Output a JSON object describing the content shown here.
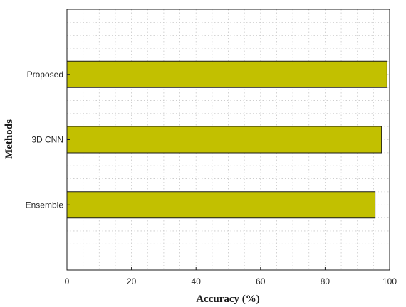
{
  "chart_data": {
    "type": "bar",
    "orientation": "horizontal",
    "categories": [
      "Ensemble",
      "3D CNN",
      "Proposed"
    ],
    "values": [
      95.5,
      97.5,
      99.2
    ],
    "title": "",
    "xlabel": "Accuracy (%)",
    "ylabel": "Methods",
    "xlim": [
      0,
      100
    ],
    "xticks": [
      "0",
      "20",
      "40",
      "60",
      "80",
      "100"
    ],
    "grid": true,
    "minor_grid": true,
    "bar_color": "#c2c000"
  }
}
